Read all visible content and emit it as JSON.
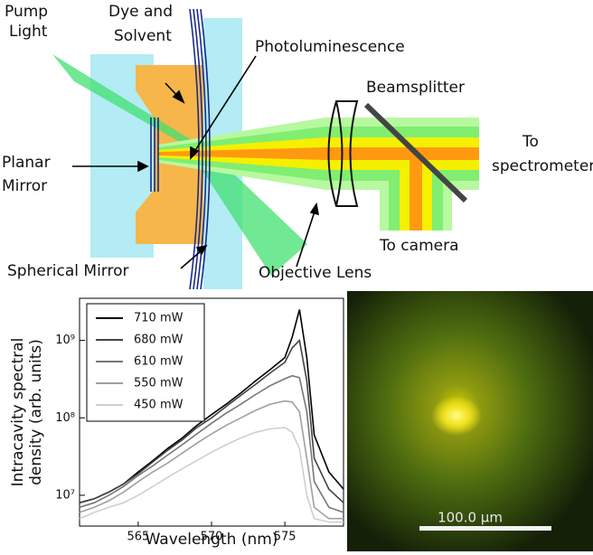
{
  "diagram": {
    "pump_light": [
      "Pump",
      "Light"
    ],
    "dye_solvent": [
      "Dye and",
      "Solvent"
    ],
    "photoluminescence": "Photoluminescence",
    "beamsplitter": "Beamsplitter",
    "to_spectrometer": [
      "To",
      "spectrometer"
    ],
    "planar_mirror": [
      "Planar",
      "Mirror"
    ],
    "to_camera": "To camera",
    "spherical_mirror": "Spherical Mirror",
    "objective_lens": "Objective Lens"
  },
  "chart_data": {
    "type": "line",
    "x_label": "Wavelength (nm)",
    "y_label": [
      "Intracavity spectral",
      "density (arb. units)"
    ],
    "x": [
      561,
      562,
      563,
      564,
      565,
      566,
      567,
      568,
      569,
      570,
      571,
      572,
      573,
      574,
      575,
      575.5,
      576,
      576.5,
      577,
      578,
      579
    ],
    "series": [
      {
        "name": "710 mW",
        "color": "#000000",
        "values": [
          8000000,
          9000000,
          11000000,
          14000000,
          20000000,
          28000000,
          40000000,
          55000000,
          80000000,
          110000000,
          150000000,
          210000000,
          300000000,
          420000000,
          600000000,
          1100000000,
          2500000000,
          600000000,
          60000000,
          20000000,
          12000000
        ]
      },
      {
        "name": "680 mW",
        "color": "#444444",
        "values": [
          8000000,
          9000000,
          11000000,
          14000000,
          19000000,
          27000000,
          38000000,
          52000000,
          75000000,
          100000000,
          140000000,
          195000000,
          270000000,
          380000000,
          520000000,
          800000000,
          1000000000,
          300000000,
          30000000,
          12000000,
          8000000
        ]
      },
      {
        "name": "610 mW",
        "color": "#777777",
        "values": [
          7000000,
          8000000,
          10000000,
          13000000,
          18000000,
          24000000,
          33000000,
          45000000,
          62000000,
          85000000,
          115000000,
          150000000,
          200000000,
          260000000,
          320000000,
          350000000,
          330000000,
          120000000,
          15000000,
          7000000,
          6000000
        ]
      },
      {
        "name": "550 mW",
        "color": "#a0a0a0",
        "values": [
          6000000,
          7000000,
          8500000,
          11000000,
          15000000,
          20000000,
          26000000,
          35000000,
          47000000,
          62000000,
          80000000,
          100000000,
          125000000,
          150000000,
          165000000,
          160000000,
          120000000,
          30000000,
          7000000,
          5000000,
          5000000
        ]
      },
      {
        "name": "450 mW",
        "color": "#cfcfcf",
        "values": [
          5000000,
          6000000,
          7000000,
          8000000,
          10000000,
          13000000,
          17000000,
          22000000,
          28000000,
          36000000,
          45000000,
          55000000,
          65000000,
          72000000,
          75000000,
          65000000,
          40000000,
          10000000,
          5000000,
          4500000,
          4500000
        ]
      }
    ],
    "xlim": [
      561,
      579
    ],
    "xticks": [
      565,
      570,
      575
    ],
    "ylim": [
      4000000,
      3500000000
    ],
    "log_y": true,
    "yticks": [
      {
        "value": 10000000,
        "label": "10⁷"
      },
      {
        "value": 100000000,
        "label": "10⁸"
      },
      {
        "value": 1000000000,
        "label": "10⁹"
      }
    ],
    "legend": "upper-left"
  },
  "image": {
    "scale_bar": "100.0 μm"
  }
}
